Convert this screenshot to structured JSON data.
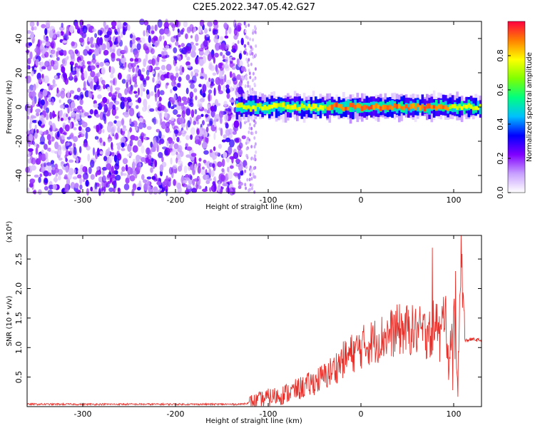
{
  "title": "C2E5.2022.347.05.42.G27",
  "chart_data": [
    {
      "type": "heatmap",
      "xlabel": "Height of straight line (km)",
      "ylabel": "Frequency (Hz)",
      "xlim": [
        -360,
        130
      ],
      "ylim": [
        -50,
        50
      ],
      "x_ticks": [
        -300,
        -200,
        -100,
        0,
        100
      ],
      "y_ticks": [
        -40,
        -20,
        0,
        20,
        40
      ],
      "colorbar": {
        "label": "Normalized spectral amplitude",
        "ticks": [
          "0.0",
          "0.2",
          "0.4",
          "0.6",
          "0.8"
        ],
        "range": [
          0,
          1
        ],
        "colormap": [
          "#ffffff",
          "#c8a0ff",
          "#8000ff",
          "#0000ff",
          "#00c0ff",
          "#00ff80",
          "#80ff00",
          "#ffff00",
          "#ff8000",
          "#ff0040"
        ]
      },
      "noise_region": {
        "x": [
          -360,
          -125
        ],
        "amplitude": [
          0.05,
          0.3
        ]
      },
      "signal_band": {
        "x": [
          -135,
          130
        ],
        "center_frequency": 0,
        "half_width": 5
      }
    },
    {
      "type": "line",
      "xlabel": "Height of straight line (km)",
      "ylabel": "SNR (10 * v/v)",
      "y_multiplier": "(x10⁴)",
      "xlim": [
        -360,
        130
      ],
      "ylim": [
        0,
        2.9
      ],
      "x_ticks": [
        -300,
        -200,
        -100,
        0,
        100
      ],
      "y_ticks": [
        0.5,
        1.0,
        1.5,
        2.0,
        2.5
      ],
      "color": "#e8302a",
      "series": [
        {
          "x": [
            -360,
            -300,
            -200,
            -130,
            -115,
            -100,
            -85,
            -70,
            -55,
            -40,
            -30,
            -20,
            -10,
            0,
            10,
            20,
            30,
            40,
            50,
            60,
            70,
            76,
            80,
            85,
            90,
            95,
            100,
            104,
            108,
            112,
            120,
            130
          ],
          "y": [
            0.04,
            0.04,
            0.04,
            0.04,
            0.08,
            0.15,
            0.2,
            0.28,
            0.38,
            0.5,
            0.62,
            0.78,
            0.9,
            1.0,
            1.08,
            1.15,
            1.22,
            1.3,
            1.3,
            1.28,
            1.25,
            1.2,
            1.6,
            1.1,
            1.7,
            0.8,
            1.6,
            0.3,
            2.7,
            1.12,
            1.14,
            1.12
          ]
        }
      ]
    }
  ]
}
